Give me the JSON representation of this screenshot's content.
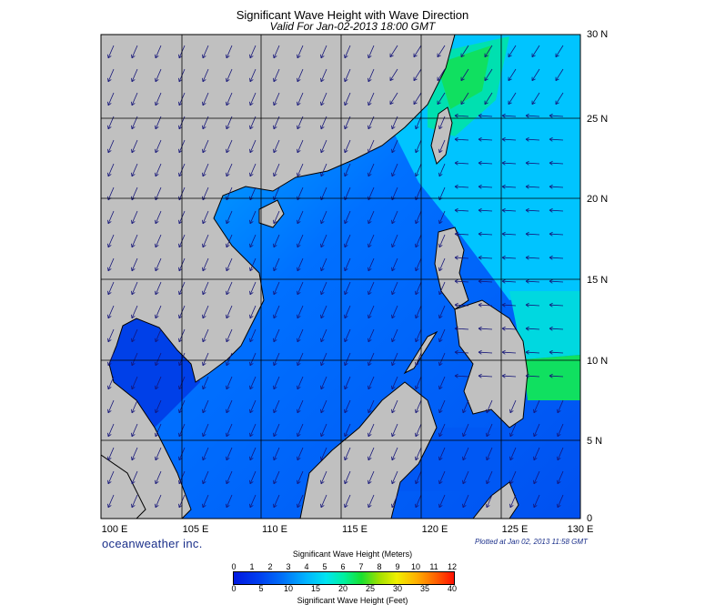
{
  "header": {
    "title": "Significant Wave Height with Wave Direction",
    "subtitle": "Valid For Jan-02-2013 18:00 GMT"
  },
  "map": {
    "lat_labels": [
      "30 N",
      "25 N",
      "20 N",
      "15 N",
      "10 N",
      "5 N",
      "0"
    ],
    "lon_labels": [
      "100 E",
      "105 E",
      "110 E",
      "115 E",
      "120 E",
      "125 E",
      "130 E"
    ],
    "lat_range": [
      0,
      30
    ],
    "lon_range": [
      100,
      130
    ],
    "land_color": "#c0c0c0",
    "grid_color": "#000000",
    "arrow_color": "#141478"
  },
  "footer": {
    "brand": "oceanweather inc.",
    "plotted": "Plotted at Jan 02, 2013 11:58 GMT"
  },
  "colorbar": {
    "title_meters": "Significant Wave Height (Meters)",
    "title_feet": "Significant Wave Height (Feet)",
    "meters_ticks": [
      "0",
      "1",
      "2",
      "3",
      "4",
      "5",
      "6",
      "7",
      "8",
      "9",
      "10",
      "11",
      "12"
    ],
    "feet_ticks": [
      "0",
      "5",
      "10",
      "15",
      "20",
      "25",
      "30",
      "35",
      "40"
    ]
  }
}
